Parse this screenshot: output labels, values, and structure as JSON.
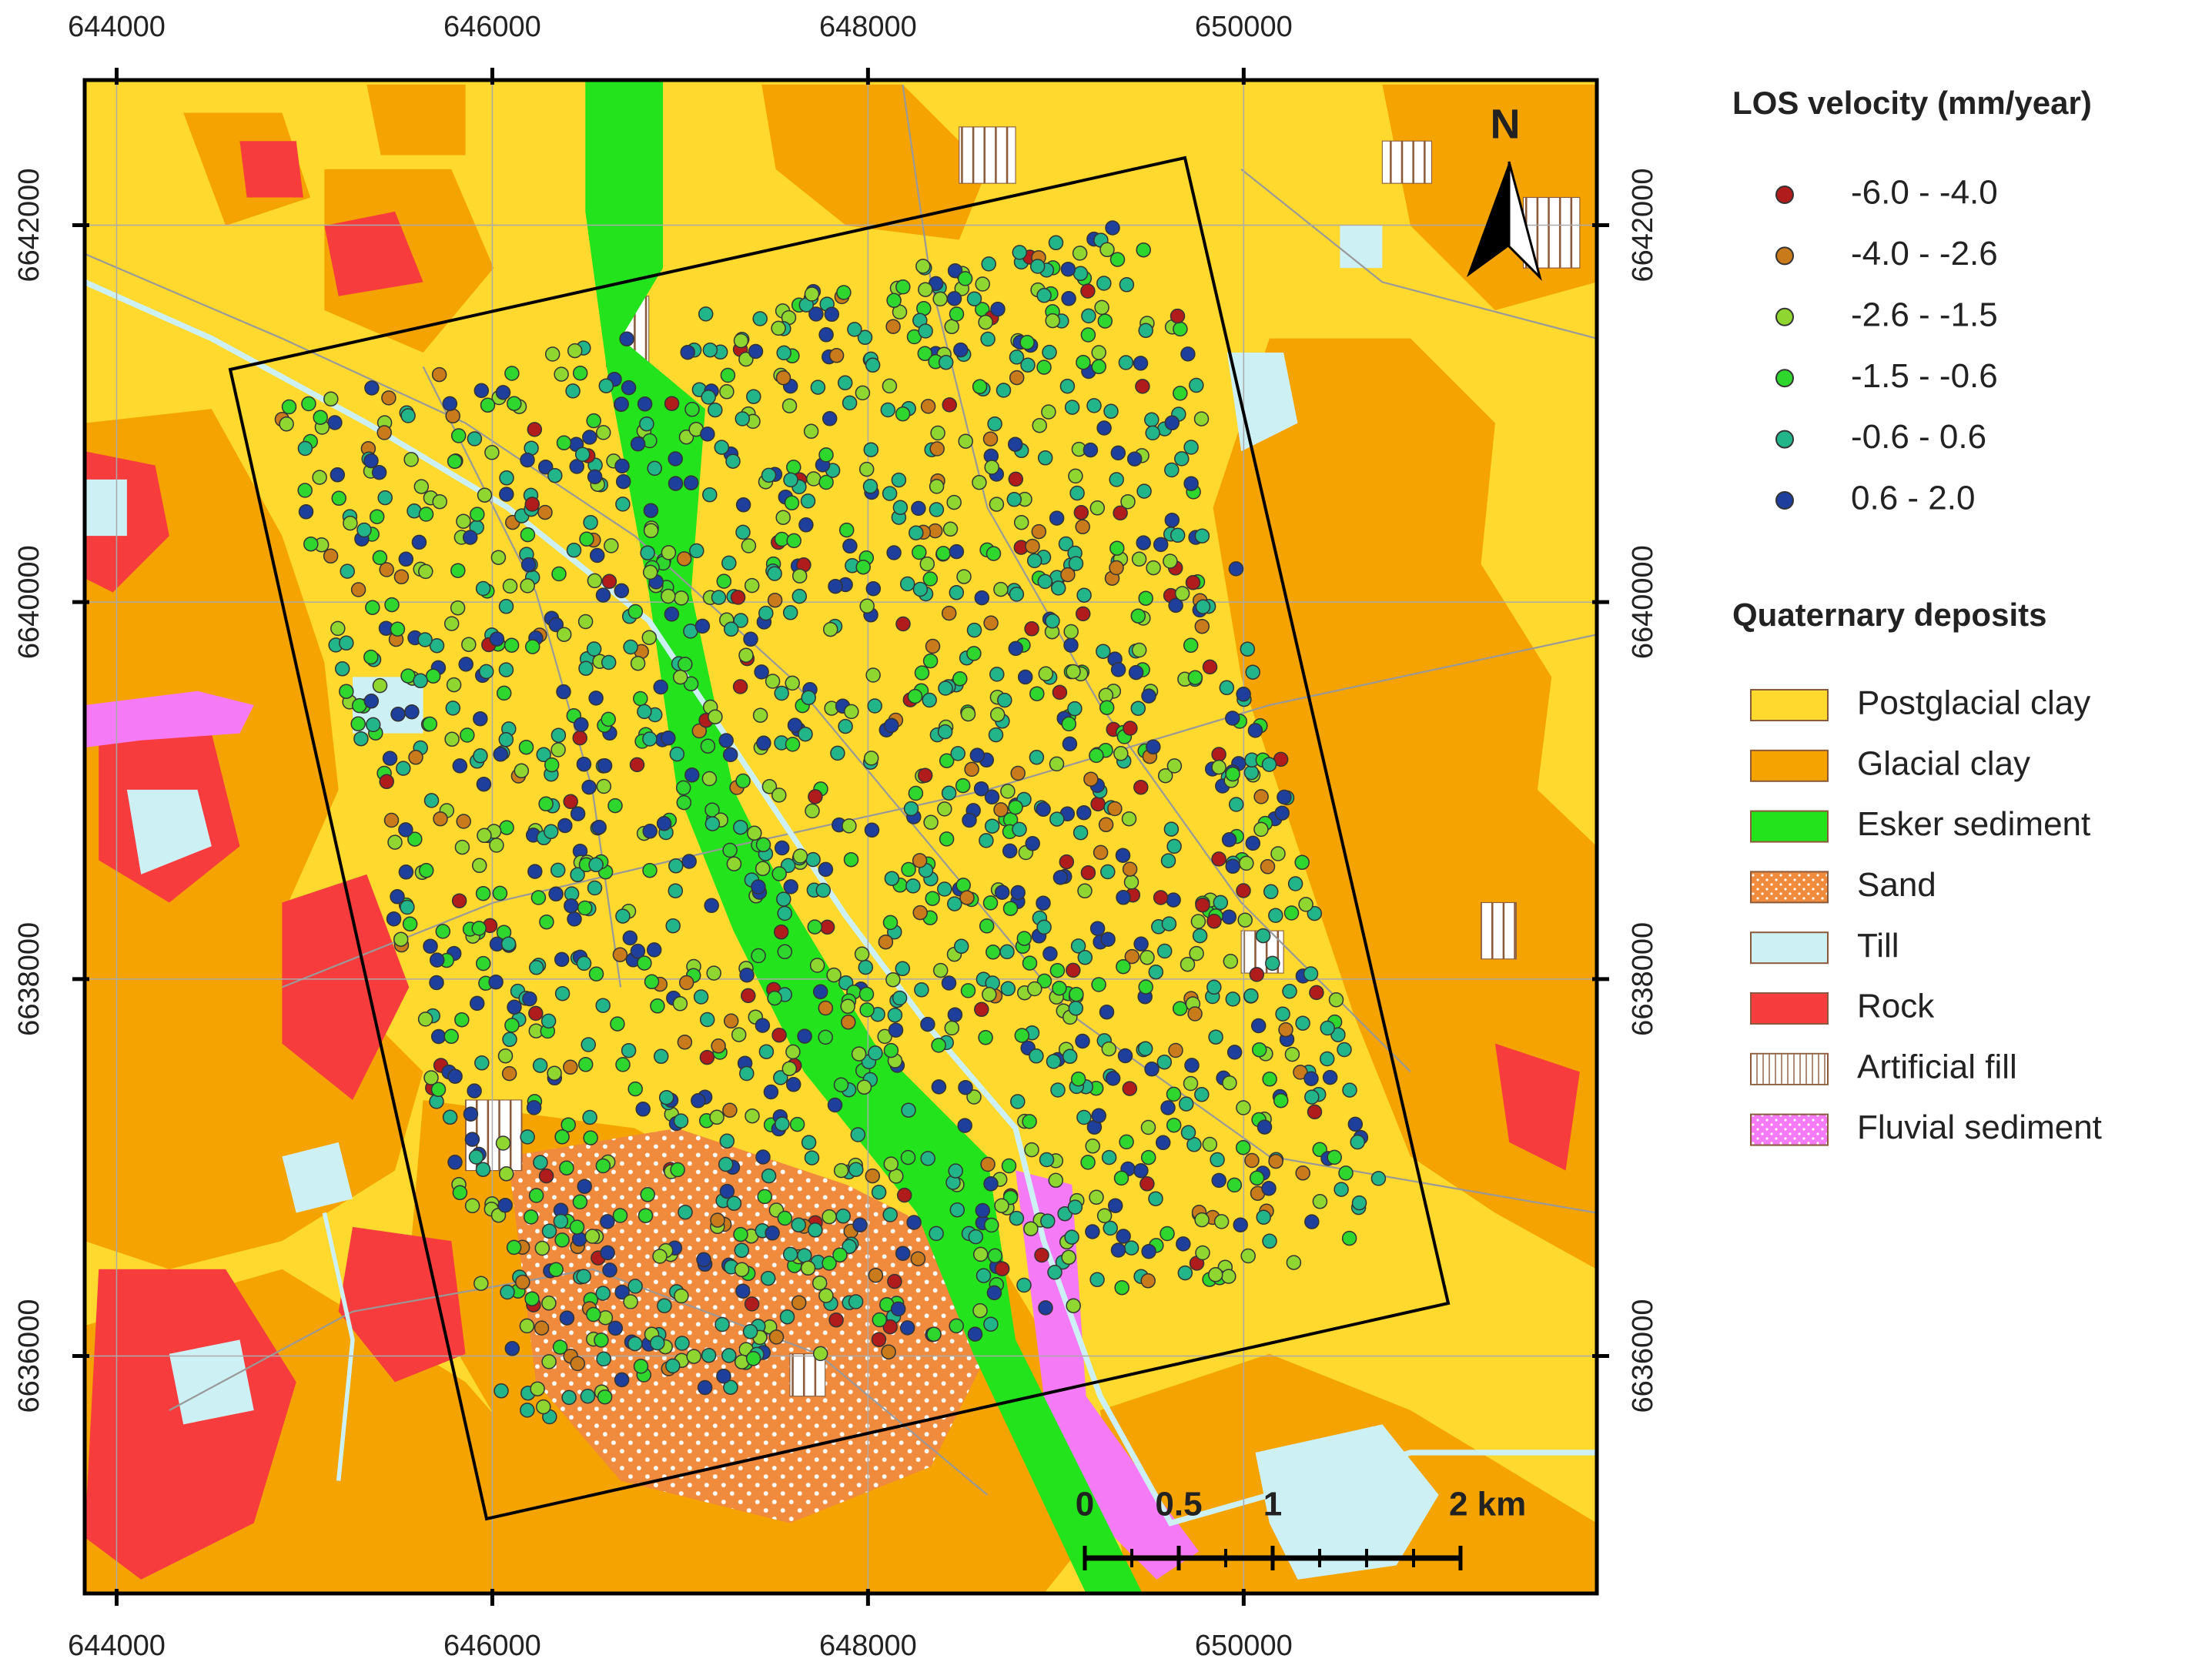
{
  "map": {
    "xlim": [
      643830,
      651880
    ],
    "ylim": [
      6634740,
      6642770
    ],
    "xticks": [
      644000,
      646000,
      648000,
      650000
    ],
    "yticks": [
      6636000,
      6638000,
      6640000,
      6642000
    ],
    "grid": true,
    "north_label": "N",
    "scale_bar": {
      "ticks": [
        0,
        0.5,
        1,
        {
          "value": 2,
          "label": "2 km"
        }
      ]
    }
  },
  "legend": {
    "velocity": {
      "title": "LOS velocity (mm/year)",
      "items": [
        {
          "label": "-6.0 - -4.0",
          "color": "#b01c1c"
        },
        {
          "label": "-4.0 - -2.6",
          "color": "#c97a1a"
        },
        {
          "label": "-2.6 - -1.5",
          "color": "#8fd630"
        },
        {
          "label": "-1.5 - -0.6",
          "color": "#2ed62e"
        },
        {
          "label": "-0.6 - 0.6",
          "color": "#22b58a"
        },
        {
          "label": "0.6 - 2.0",
          "color": "#1f3f9c"
        }
      ]
    },
    "deposits": {
      "title": "Quaternary deposits",
      "items": [
        {
          "label": "Postglacial clay",
          "color": "#ffd92e"
        },
        {
          "label": "Glacial clay",
          "color": "#f5a300"
        },
        {
          "label": "Esker sediment",
          "color": "#22e31c"
        },
        {
          "label": "Sand",
          "color": "#f08a3c"
        },
        {
          "label": "Till",
          "color": "#cdf0f5"
        },
        {
          "label": "Rock",
          "color": "#f63c3c"
        },
        {
          "label": "Artificial fill",
          "color": "#ffffff"
        },
        {
          "label": "Fluvial sediment",
          "color": "#f57af5"
        }
      ]
    }
  }
}
